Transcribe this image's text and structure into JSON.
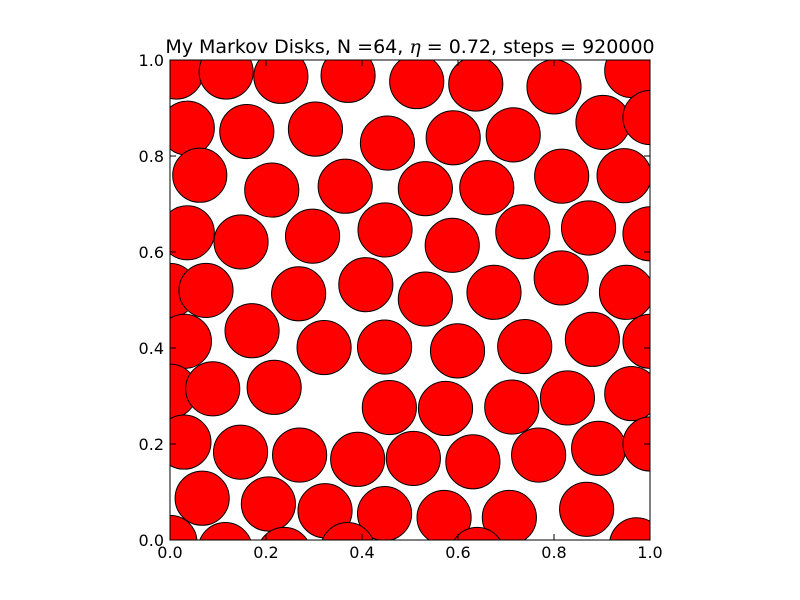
{
  "chart_data": {
    "type": "scatter",
    "marker": "disk",
    "title_parts": {
      "prefix": "My Markov Disks, N =64, ",
      "symbol": "η",
      "suffix": " = 0.72, steps = 920000"
    },
    "xlabel": "",
    "ylabel": "",
    "xlim": [
      0.0,
      1.0
    ],
    "ylim": [
      0.0,
      1.0
    ],
    "grid": false,
    "periodic": true,
    "disk_radius": 0.0564,
    "x_ticks": [
      "0.0",
      "0.2",
      "0.4",
      "0.6",
      "0.8",
      "1.0"
    ],
    "y_ticks": [
      "0.0",
      "0.2",
      "0.4",
      "0.6",
      "0.8",
      "1.0"
    ],
    "colors": {
      "disk_fill": "#ff0000",
      "disk_edge": "#000000",
      "axes_edge": "#000000",
      "background": "#ffffff"
    },
    "points": [
      [
        0.013,
        0.975
      ],
      [
        0.117,
        0.975
      ],
      [
        0.231,
        0.966
      ],
      [
        0.371,
        0.968
      ],
      [
        0.514,
        0.955
      ],
      [
        0.637,
        0.95
      ],
      [
        0.8,
        0.944
      ],
      [
        0.962,
        0.978
      ],
      [
        0.036,
        0.858
      ],
      [
        0.16,
        0.851
      ],
      [
        0.303,
        0.856
      ],
      [
        0.453,
        0.827
      ],
      [
        0.59,
        0.838
      ],
      [
        0.715,
        0.844
      ],
      [
        0.902,
        0.87
      ],
      [
        1.0,
        0.88
      ],
      [
        0.062,
        0.76
      ],
      [
        0.212,
        0.729
      ],
      [
        0.365,
        0.737
      ],
      [
        0.532,
        0.732
      ],
      [
        0.66,
        0.734
      ],
      [
        0.816,
        0.758
      ],
      [
        0.946,
        0.759
      ],
      [
        0.036,
        0.64
      ],
      [
        0.148,
        0.621
      ],
      [
        0.297,
        0.633
      ],
      [
        0.448,
        0.646
      ],
      [
        0.588,
        0.614
      ],
      [
        0.735,
        0.642
      ],
      [
        0.872,
        0.65
      ],
      [
        1.0,
        0.638
      ],
      [
        0.0,
        0.52
      ],
      [
        0.075,
        0.52
      ],
      [
        0.268,
        0.513
      ],
      [
        0.408,
        0.532
      ],
      [
        0.532,
        0.502
      ],
      [
        0.675,
        0.516
      ],
      [
        0.815,
        0.546
      ],
      [
        0.951,
        0.516
      ],
      [
        0.03,
        0.414
      ],
      [
        0.171,
        0.436
      ],
      [
        0.321,
        0.401
      ],
      [
        0.447,
        0.402
      ],
      [
        0.599,
        0.394
      ],
      [
        0.739,
        0.403
      ],
      [
        0.88,
        0.418
      ],
      [
        1.0,
        0.414
      ],
      [
        0.0,
        0.31
      ],
      [
        0.089,
        0.315
      ],
      [
        0.217,
        0.318
      ],
      [
        0.457,
        0.276
      ],
      [
        0.574,
        0.274
      ],
      [
        0.712,
        0.277
      ],
      [
        0.828,
        0.296
      ],
      [
        0.962,
        0.305
      ],
      [
        0.029,
        0.204
      ],
      [
        0.147,
        0.183
      ],
      [
        0.27,
        0.177
      ],
      [
        0.391,
        0.168
      ],
      [
        0.507,
        0.17
      ],
      [
        0.631,
        0.163
      ],
      [
        0.768,
        0.177
      ],
      [
        0.893,
        0.191
      ],
      [
        1.0,
        0.2
      ],
      [
        0.067,
        0.087
      ],
      [
        0.205,
        0.075
      ],
      [
        0.323,
        0.061
      ],
      [
        0.447,
        0.055
      ],
      [
        0.571,
        0.047
      ],
      [
        0.707,
        0.047
      ],
      [
        0.868,
        0.064
      ],
      [
        0.0,
        -0.005
      ],
      [
        0.115,
        -0.02
      ],
      [
        0.238,
        -0.03
      ],
      [
        0.37,
        -0.02
      ],
      [
        0.64,
        -0.03
      ],
      [
        0.972,
        -0.01
      ]
    ]
  }
}
